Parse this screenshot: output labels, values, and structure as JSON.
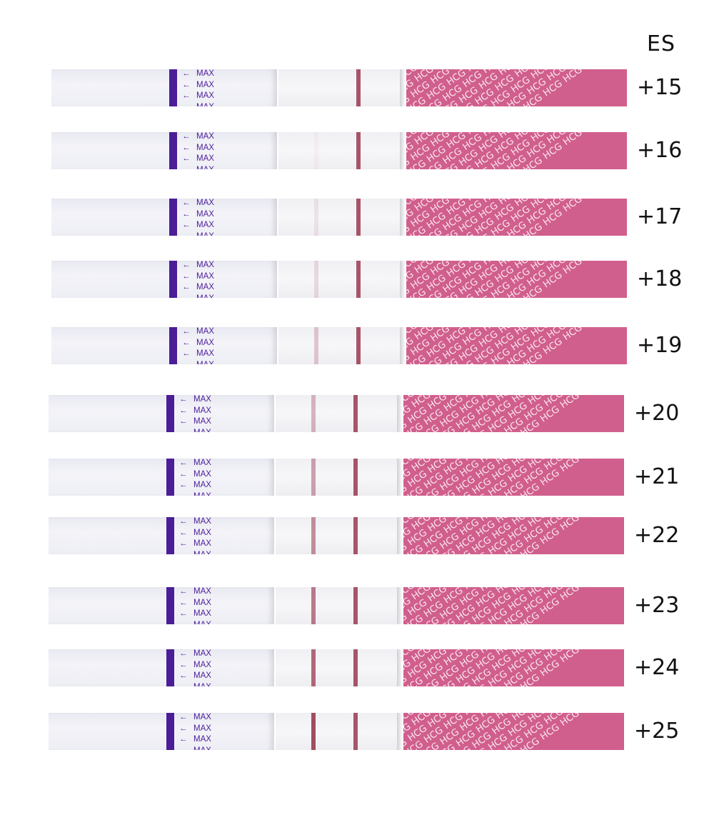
{
  "header": "ES",
  "handle_text": "MAX",
  "pattern_text": "HCG",
  "colors": {
    "purple": "#4b1d97",
    "pink": "#d05f8d",
    "line": "#9a3850"
  },
  "strips": [
    {
      "label": "+15",
      "test_line_intensity": 0.0
    },
    {
      "label": "+16",
      "test_line_intensity": 0.04
    },
    {
      "label": "+17",
      "test_line_intensity": 0.1
    },
    {
      "label": "+18",
      "test_line_intensity": 0.15
    },
    {
      "label": "+19",
      "test_line_intensity": 0.25
    },
    {
      "label": "+20",
      "test_line_intensity": 0.35
    },
    {
      "label": "+21",
      "test_line_intensity": 0.45
    },
    {
      "label": "+22",
      "test_line_intensity": 0.55
    },
    {
      "label": "+23",
      "test_line_intensity": 0.65
    },
    {
      "label": "+24",
      "test_line_intensity": 0.75
    },
    {
      "label": "+25",
      "test_line_intensity": 0.9
    }
  ]
}
